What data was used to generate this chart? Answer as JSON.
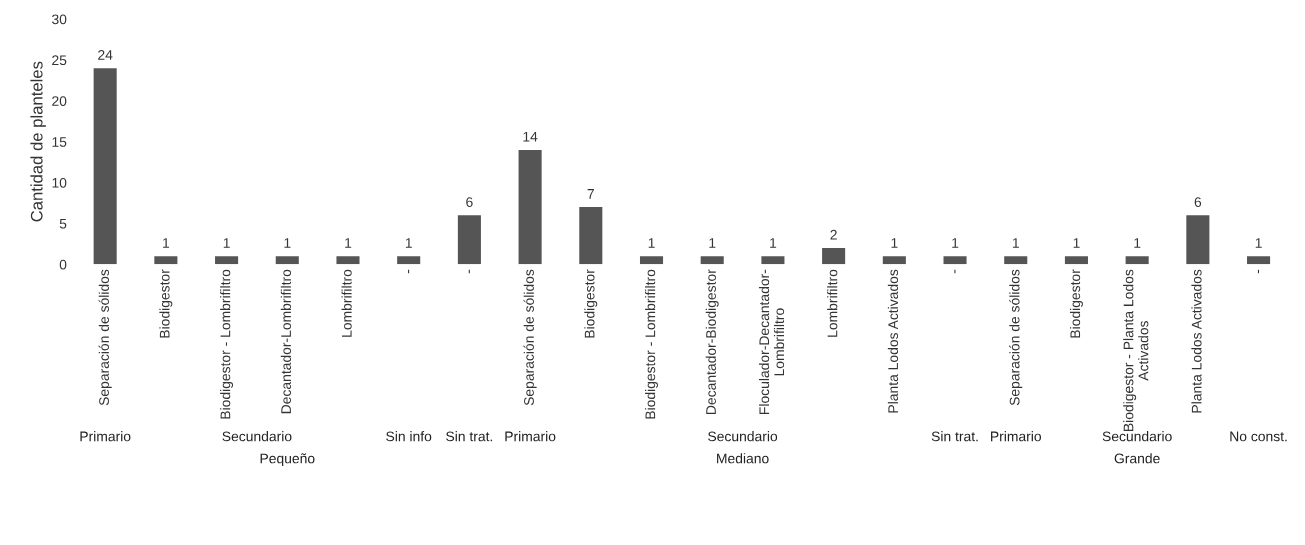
{
  "chart_data": {
    "type": "bar",
    "ylabel": "Cantidad de planteles",
    "categories": [
      "Separación de sólidos",
      "Biodigestor",
      "Biodigestor - Lombrifiltro",
      "Decantador-Lombrifiltro",
      "Lombrifiltro",
      "-",
      "-",
      "Separación de sólidos",
      "Biodigestor",
      "Biodigestor - Lombrifiltro",
      "Decantador-Biodigestor",
      "Floculador-Decantador-Lombrifiltro",
      "Lombrifiltro",
      "Planta Lodos Activados",
      "-",
      "Separación de sólidos",
      "Biodigestor",
      "Biodigestor - Planta Lodos Activados",
      "Planta Lodos Activados",
      "-"
    ],
    "values": [
      24,
      1,
      1,
      1,
      1,
      1,
      6,
      14,
      7,
      1,
      1,
      1,
      2,
      1,
      1,
      1,
      1,
      1,
      6,
      1
    ],
    "color": "#555555",
    "ylim": [
      0,
      30
    ],
    "yticks": [
      0,
      5,
      10,
      15,
      20,
      25,
      30
    ],
    "data_labels": true,
    "grid": false,
    "annotations": [
      "Primario",
      "Secundario",
      "Sin info",
      "Sin trat.",
      "Primario",
      "Secundario",
      "Sin trat.",
      "Primario",
      "Secundario",
      "No const.",
      "Pequeño",
      "Mediano",
      "Grande"
    ]
  }
}
